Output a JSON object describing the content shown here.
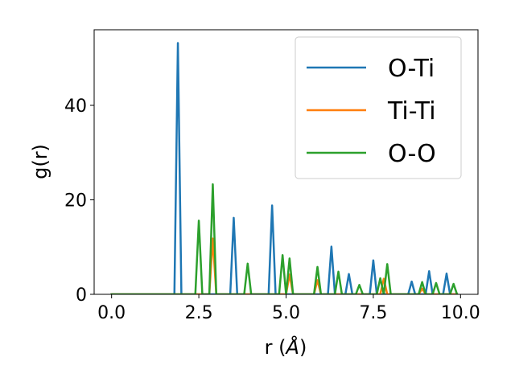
{
  "chart_data": {
    "type": "line",
    "xlabel": "r (",
    "xlabel_unit": "Å",
    "xlabel_close": ")",
    "ylabel": "g(r)",
    "xlim": [
      -0.5,
      10.5
    ],
    "ylim": [
      0,
      56
    ],
    "xticks": [
      0.0,
      2.5,
      5.0,
      7.5,
      10.0
    ],
    "xtick_labels": [
      "0.0",
      "2.5",
      "5.0",
      "7.5",
      "10.0"
    ],
    "yticks": [
      0,
      20,
      40
    ],
    "ytick_labels": [
      "0",
      "20",
      "40"
    ],
    "grid": false,
    "legend_position": "top-right",
    "x_start": 0.0,
    "x_end": 9.9,
    "x_step": 0.1,
    "series": [
      {
        "name": "O-Ti",
        "color": "#1f77b4",
        "peaks": [
          [
            1.9,
            53.2
          ],
          [
            3.5,
            16.2
          ],
          [
            4.6,
            18.8
          ],
          [
            6.3,
            10.1
          ],
          [
            6.8,
            4.3
          ],
          [
            7.5,
            7.2
          ],
          [
            8.6,
            2.7
          ],
          [
            9.1,
            4.9
          ],
          [
            9.6,
            4.4
          ]
        ]
      },
      {
        "name": "Ti-Ti",
        "color": "#ff7f0e",
        "peaks": [
          [
            2.9,
            11.8
          ],
          [
            5.1,
            4.2
          ],
          [
            5.9,
            3.0
          ],
          [
            7.8,
            3.3
          ],
          [
            8.9,
            1.2
          ]
        ]
      },
      {
        "name": "O-O",
        "color": "#2ca02c",
        "peaks": [
          [
            2.5,
            15.6
          ],
          [
            2.9,
            23.3
          ],
          [
            3.9,
            6.5
          ],
          [
            4.9,
            8.3
          ],
          [
            5.1,
            7.6
          ],
          [
            5.9,
            5.8
          ],
          [
            6.5,
            4.8
          ],
          [
            7.1,
            2.0
          ],
          [
            7.7,
            3.4
          ],
          [
            7.9,
            6.4
          ],
          [
            8.9,
            2.6
          ],
          [
            9.3,
            2.4
          ],
          [
            9.8,
            2.2
          ]
        ]
      }
    ]
  }
}
